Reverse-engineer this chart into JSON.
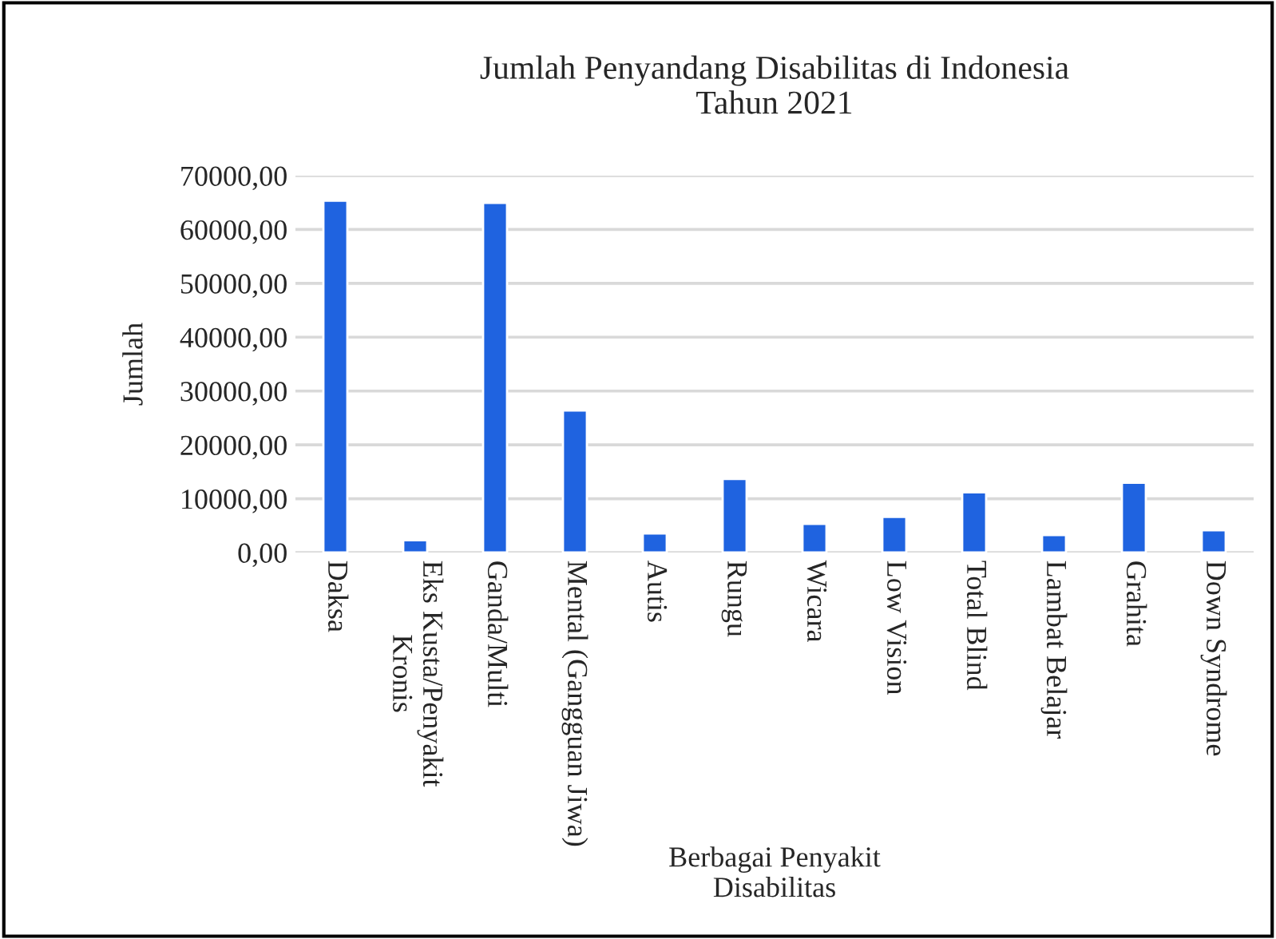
{
  "chart_data": {
    "type": "bar",
    "title": "Jumlah Penyandang Disabilitas di Indonesia\nTahun 2021",
    "xlabel": "Berbagai Penyakit\nDisabilitas",
    "ylabel": "Jumlah",
    "categories": [
      "Daksa",
      "Eks Kusta/Penyakit\nKronis",
      "Ganda/Multi",
      "Mental (Gangguan Jiwa)",
      "Autis",
      "Rungu",
      "Wicara",
      "Low Vision",
      "Total Blind",
      "Lambat Belajar",
      "Grahita",
      "Down Syndrome"
    ],
    "values": [
      65350,
      2270,
      64950,
      26400,
      3560,
      13650,
      5340,
      6620,
      11180,
      3260,
      12960,
      4150
    ],
    "color": "#1f63e0",
    "ylim": [
      0,
      70000
    ],
    "yticks": [
      {
        "value": 0,
        "label": "0,00"
      },
      {
        "value": 10000,
        "label": "10000,00"
      },
      {
        "value": 20000,
        "label": "20000,00"
      },
      {
        "value": 30000,
        "label": "30000,00"
      },
      {
        "value": 40000,
        "label": "40000,00"
      },
      {
        "value": 50000,
        "label": "50000,00"
      },
      {
        "value": 60000,
        "label": "60000,00"
      },
      {
        "value": 70000,
        "label": "70000,00"
      }
    ],
    "grid": "y"
  }
}
